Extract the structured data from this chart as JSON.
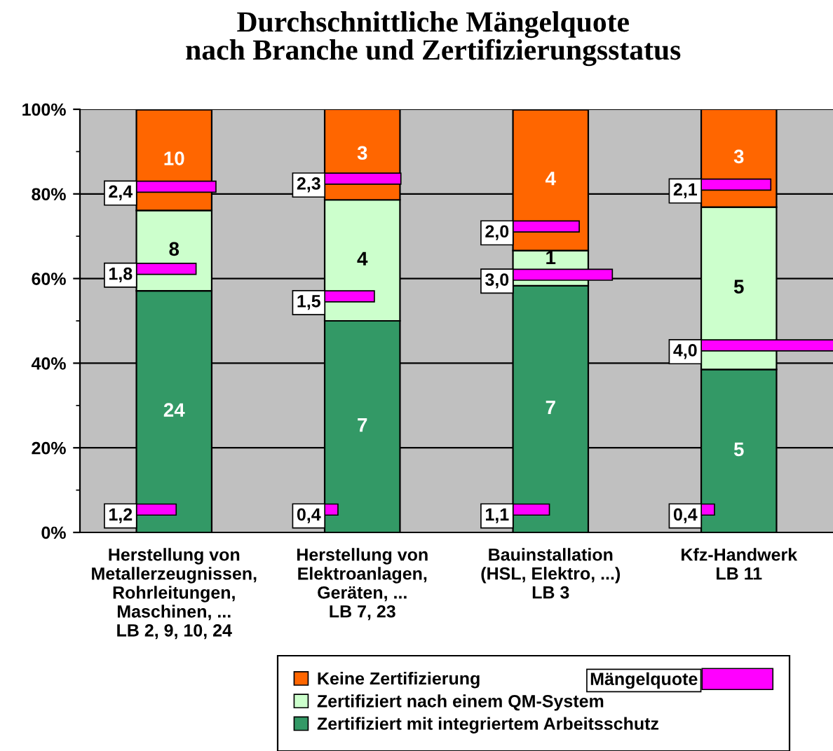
{
  "chart_data": {
    "type": "bar",
    "stacked": true,
    "title": "Durchschnittliche Mängelquote\nnach Branche und Zertifizierungsstatus",
    "categories": [
      "Herstellung von\nMetallerzeugnissen,\nRohrleitungen,\nMaschinen, ...\nLB 2, 9, 10, 24",
      "Herstellung von\nElektroanlagen,\nGeräten, ...\nLB 7, 23",
      "Bauinstallation\n(HSL, Elektro, ...)\nLB 3",
      "Kfz-Handwerk\nLB 11"
    ],
    "series": [
      {
        "name": "Zertifiziert mit integriertem Arbeitsschutz",
        "color": "#339966",
        "values": [
          57.1,
          50.0,
          58.3,
          38.5
        ]
      },
      {
        "name": "Zertifiziert nach einem QM-System",
        "color": "#ccffcc",
        "values": [
          19.0,
          28.6,
          8.3,
          38.4
        ]
      },
      {
        "name": "Keine Zertifizierung",
        "color": "#ff6600",
        "values": [
          23.8,
          21.4,
          33.3,
          23.1
        ]
      }
    ],
    "annotations": [
      "24",
      "8",
      "10",
      "7",
      "4",
      "3",
      "7",
      "1",
      "4",
      "5",
      "5",
      "3",
      "1,2",
      "1,8",
      "2,4",
      "0,4",
      "1,5",
      "2,3",
      "1,1",
      "3,0",
      "2,0",
      "0,4",
      "4,0",
      "2,1",
      "Mängelquote"
    ],
    "ylim": [
      0,
      100
    ],
    "yticks": [
      {
        "value": 0,
        "label": "0%"
      },
      {
        "value": 10,
        "label": null
      },
      {
        "value": 20,
        "label": "20%"
      },
      {
        "value": 30,
        "label": null
      },
      {
        "value": 40,
        "label": "40%"
      },
      {
        "value": 50,
        "label": null
      },
      {
        "value": 60,
        "label": "60%"
      },
      {
        "value": 70,
        "label": null
      },
      {
        "value": 80,
        "label": "80%"
      },
      {
        "value": 90,
        "label": null
      },
      {
        "value": 100,
        "label": "100%"
      }
    ],
    "grid": "y",
    "legend": "bottom"
  }
}
